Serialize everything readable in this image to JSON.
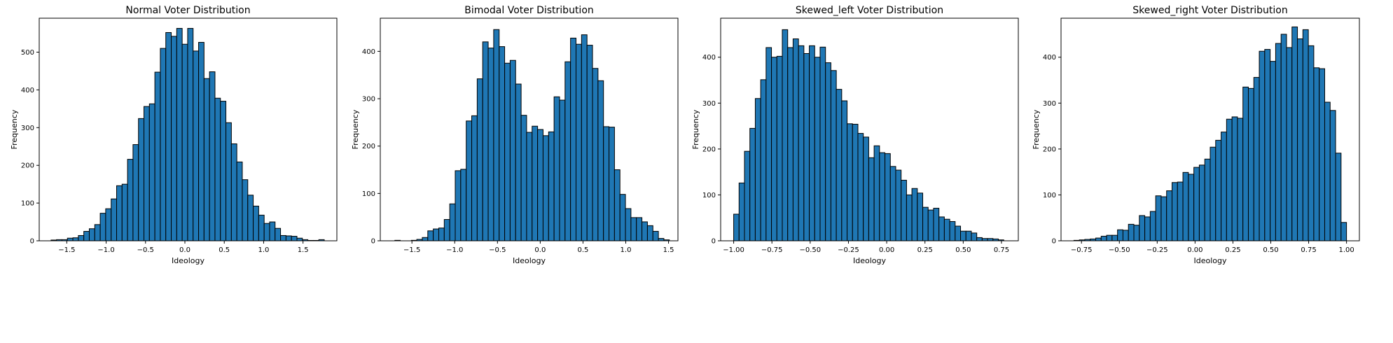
{
  "chart_data": [
    {
      "type": "bar",
      "title": "Normal Voter Distribution",
      "xlabel": "Ideology",
      "ylabel": "Frequency",
      "xlim": [
        -1.85,
        1.93
      ],
      "ylim": [
        0,
        590
      ],
      "xticks": [
        -1.5,
        -1.0,
        -0.5,
        0.0,
        0.5,
        1.0,
        1.5
      ],
      "xtick_labels": [
        "−1.5",
        "−1.0",
        "−0.5",
        "0.0",
        "0.5",
        "1.0",
        "1.5"
      ],
      "yticks": [
        0,
        100,
        200,
        300,
        400,
        500
      ],
      "ytick_labels": [
        "0",
        "100",
        "200",
        "300",
        "400",
        "500"
      ],
      "bin_start": -1.7,
      "bin_width": 0.0694,
      "values": [
        2,
        3,
        3,
        7,
        8,
        14,
        25,
        32,
        43,
        73,
        85,
        111,
        146,
        150,
        216,
        255,
        324,
        356,
        363,
        447,
        510,
        552,
        542,
        563,
        521,
        563,
        503,
        526,
        430,
        448,
        378,
        370,
        313,
        257,
        209,
        162,
        121,
        92,
        68,
        46,
        50,
        33,
        14,
        13,
        12,
        7,
        3,
        1,
        1,
        3
      ]
    },
    {
      "type": "bar",
      "title": "Bimodal Voter Distribution",
      "xlabel": "Ideology",
      "ylabel": "Frequency",
      "xlim": [
        -1.87,
        1.61
      ],
      "ylim": [
        0,
        470
      ],
      "xticks": [
        -1.5,
        -1.0,
        -0.5,
        0.0,
        0.5,
        1.0,
        1.5
      ],
      "xtick_labels": [
        "−1.5",
        "−1.0",
        "−0.5",
        "0.0",
        "0.5",
        "1.0",
        "1.5"
      ],
      "yticks": [
        0,
        100,
        200,
        300,
        400
      ],
      "ytick_labels": [
        "0",
        "100",
        "200",
        "300",
        "400"
      ],
      "bin_start": -1.7,
      "bin_width": 0.0642,
      "values": [
        1,
        0,
        0,
        1,
        3,
        7,
        21,
        25,
        27,
        45,
        78,
        148,
        151,
        253,
        264,
        342,
        420,
        407,
        446,
        410,
        375,
        381,
        331,
        265,
        229,
        242,
        235,
        222,
        230,
        304,
        297,
        378,
        428,
        415,
        435,
        413,
        364,
        338,
        241,
        240,
        150,
        98,
        68,
        49,
        49,
        40,
        32,
        20,
        5,
        2
      ]
    },
    {
      "type": "bar",
      "title": "Skewed_left Voter Distribution",
      "xlabel": "Ideology",
      "ylabel": "Frequency",
      "xlim": [
        -1.085,
        0.86
      ],
      "ylim": [
        0,
        485
      ],
      "xticks": [
        -1.0,
        -0.75,
        -0.5,
        -0.25,
        0.0,
        0.25,
        0.5,
        0.75
      ],
      "xtick_labels": [
        "−1.00",
        "−0.75",
        "−0.50",
        "−0.25",
        "0.00",
        "0.25",
        "0.50",
        "0.75"
      ],
      "yticks": [
        0,
        100,
        200,
        300,
        400
      ],
      "ytick_labels": [
        "0",
        "100",
        "200",
        "300",
        "400"
      ],
      "bin_start": -1.0,
      "bin_width": 0.0353,
      "values": [
        58,
        126,
        195,
        245,
        310,
        351,
        421,
        400,
        402,
        460,
        421,
        440,
        425,
        408,
        425,
        400,
        422,
        388,
        371,
        330,
        305,
        255,
        254,
        234,
        226,
        181,
        207,
        192,
        190,
        162,
        154,
        132,
        100,
        114,
        104,
        73,
        67,
        71,
        52,
        47,
        42,
        32,
        21,
        21,
        17,
        7,
        5,
        5,
        4,
        2
      ]
    },
    {
      "type": "bar",
      "title": "Skewed_right Voter Distribution",
      "xlabel": "Ideology",
      "ylabel": "Frequency",
      "xlim": [
        -0.885,
        1.085
      ],
      "ylim": [
        0,
        485
      ],
      "xticks": [
        -0.75,
        -0.5,
        -0.25,
        0.0,
        0.25,
        0.5,
        0.75,
        1.0
      ],
      "xtick_labels": [
        "−0.75",
        "−0.50",
        "−0.25",
        "0.00",
        "0.25",
        "0.50",
        "0.75",
        "1.00"
      ],
      "yticks": [
        0,
        100,
        200,
        300,
        400
      ],
      "ytick_labels": [
        "0",
        "100",
        "200",
        "300",
        "400"
      ],
      "bin_start": -0.8,
      "bin_width": 0.036,
      "values": [
        1,
        2,
        3,
        4,
        6,
        10,
        12,
        12,
        24,
        23,
        36,
        34,
        55,
        52,
        64,
        98,
        96,
        109,
        127,
        128,
        149,
        145,
        160,
        165,
        178,
        204,
        219,
        237,
        265,
        270,
        267,
        335,
        332,
        356,
        413,
        417,
        391,
        430,
        450,
        421,
        466,
        440,
        460,
        425,
        377,
        375,
        302,
        284,
        191,
        40
      ]
    }
  ]
}
